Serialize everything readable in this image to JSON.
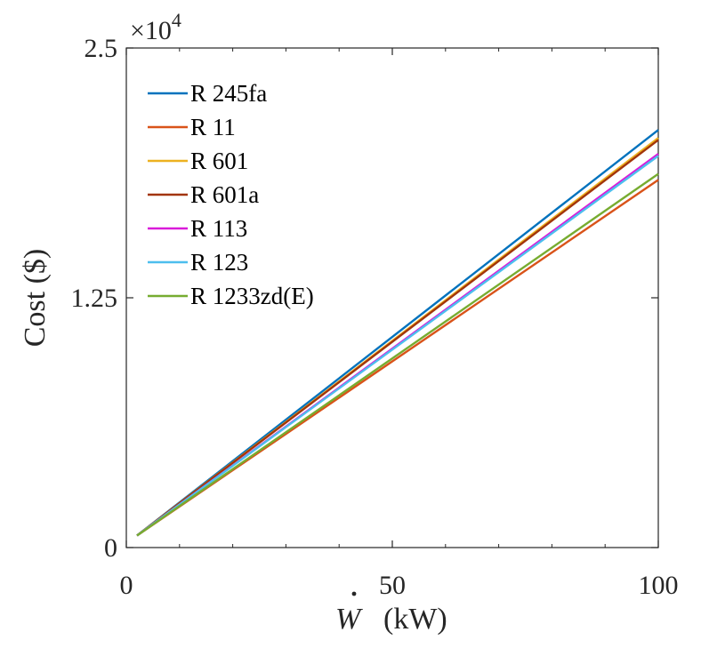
{
  "chart_data": {
    "type": "line",
    "title": "",
    "xlabel_var": "W",
    "xlabel_unit": "(kW)",
    "ylabel": "Cost ($)",
    "multiplier_prefix": "×10",
    "multiplier_exp": "4",
    "xlim": [
      0,
      100
    ],
    "ylim": [
      0,
      2.5
    ],
    "xticks": [
      0,
      50,
      100
    ],
    "xtick_labels": [
      "0",
      "50",
      "100"
    ],
    "yticks": [
      0,
      1.25,
      2.5
    ],
    "ytick_labels": [
      "0",
      "1.25",
      "2.5"
    ],
    "grid": false,
    "legend_location": "top-left",
    "series": [
      {
        "name": "R 245fa",
        "color": "#0072BD",
        "x": [
          2,
          100
        ],
        "y": [
          0.06,
          2.09
        ]
      },
      {
        "name": "R 11",
        "color": "#D95319",
        "x": [
          2,
          100
        ],
        "y": [
          0.06,
          1.84
        ]
      },
      {
        "name": "R 601",
        "color": "#EDB120",
        "x": [
          2,
          100
        ],
        "y": [
          0.06,
          2.05
        ]
      },
      {
        "name": "R 601a",
        "color": "#A2350A",
        "x": [
          2,
          100
        ],
        "y": [
          0.06,
          2.04
        ]
      },
      {
        "name": "R 113",
        "color": "#D91BD9",
        "x": [
          2,
          100
        ],
        "y": [
          0.06,
          1.97
        ]
      },
      {
        "name": "R 123",
        "color": "#4DBEEE",
        "x": [
          2,
          100
        ],
        "y": [
          0.06,
          1.96
        ]
      },
      {
        "name": "R 1233zd(E)",
        "color": "#77AC30",
        "x": [
          2,
          100
        ],
        "y": [
          0.06,
          1.87
        ]
      }
    ]
  }
}
